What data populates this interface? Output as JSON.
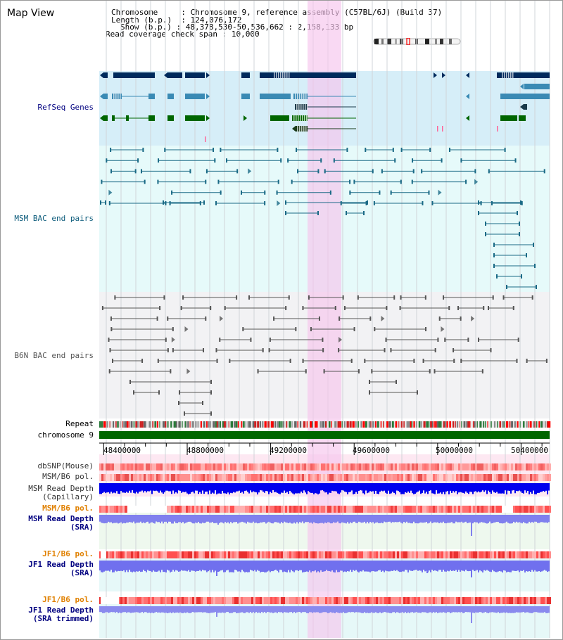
{
  "view": {
    "title": "Map View"
  },
  "header": {
    "chromosome_label": "Chromosome",
    "chromosome_value": "Chromosome 9, reference assembly (C57BL/6J) (Build 37)",
    "length_label": "Length (b.p.)",
    "length_value": "124,076,172",
    "show_label": "Show (b.p.)",
    "show_value": "48,378,530-50,536,662 : 2,158,133 bp",
    "coverage_label": "Read coverage check span",
    "coverage_value": "10,000"
  },
  "tracks": {
    "refseq": {
      "label": "RefSeq Genes",
      "color": "#000080"
    },
    "msm_bac": {
      "label": "MSM BAC end pairs",
      "color": "#0a5a7a"
    },
    "b6n_bac": {
      "label": "B6N BAC end pairs",
      "color": "#555555"
    },
    "repeat": {
      "label": "Repeat"
    },
    "chromosome": {
      "label": "chromosome 9"
    },
    "dbsnp": {
      "label": "dbSNP(Mouse)"
    },
    "msm_b6_pol_1": {
      "label": "MSM/B6 pol."
    },
    "msm_depth_cap": {
      "label1": "MSM Read Depth",
      "label2": "(Capillary)"
    },
    "msm_b6_pol_2": {
      "label": "MSM/B6 pol.",
      "color": "#e08000"
    },
    "msm_depth_sra": {
      "label1": "MSM Read Depth",
      "label2": "(SRA)",
      "color": "#000080"
    },
    "jf1_b6_pol_1": {
      "label": "JF1/B6 pol.",
      "color": "#e08000"
    },
    "jf1_depth_sra": {
      "label1": "JF1 Read Depth",
      "label2": "(SRA)",
      "color": "#000080"
    },
    "jf1_b6_pol_2": {
      "label": "JF1/B6 pol.",
      "color": "#e08000"
    },
    "jf1_depth_trim": {
      "label1": "JF1 Read Depth",
      "label2": "(SRA trimmed)",
      "color": "#000080"
    }
  },
  "axis": {
    "tick_labels": [
      "48400000",
      "48800000",
      "49200000",
      "49600000",
      "50000000",
      "50400000"
    ],
    "tick_values": [
      48400000,
      48800000,
      49200000,
      49600000,
      50000000,
      50400000
    ]
  }
}
